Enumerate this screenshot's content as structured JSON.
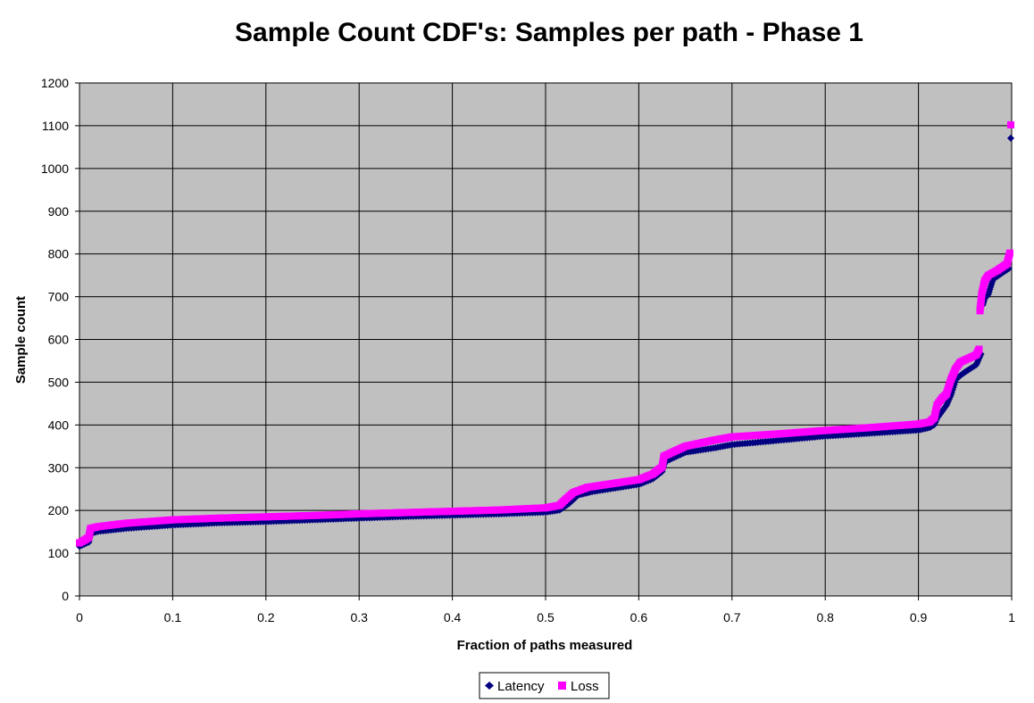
{
  "chart_data": {
    "type": "scatter",
    "title": "Sample Count CDF's:  Samples per path - Phase 1",
    "xlabel": "Fraction of paths measured",
    "ylabel": "Sample count",
    "xlim": [
      0,
      1
    ],
    "ylim": [
      0,
      1200
    ],
    "xticks": [
      "0",
      "0.1",
      "0.2",
      "0.3",
      "0.4",
      "0.5",
      "0.6",
      "0.7",
      "0.8",
      "0.9",
      "1"
    ],
    "yticks": [
      "0",
      "100",
      "200",
      "300",
      "400",
      "500",
      "600",
      "700",
      "800",
      "900",
      "1000",
      "1100",
      "1200"
    ],
    "grid": true,
    "legend_position": "bottom",
    "plot_background": "#c0c0c0",
    "series": [
      {
        "name": "Latency",
        "marker": "diamond",
        "color": "#000080",
        "points": [
          [
            0.0,
            120
          ],
          [
            0.005,
            125
          ],
          [
            0.01,
            130
          ],
          [
            0.012,
            150
          ],
          [
            0.02,
            155
          ],
          [
            0.05,
            162
          ],
          [
            0.1,
            170
          ],
          [
            0.15,
            175
          ],
          [
            0.2,
            178
          ],
          [
            0.25,
            182
          ],
          [
            0.3,
            186
          ],
          [
            0.35,
            190
          ],
          [
            0.4,
            193
          ],
          [
            0.45,
            196
          ],
          [
            0.5,
            200
          ],
          [
            0.515,
            205
          ],
          [
            0.525,
            220
          ],
          [
            0.535,
            240
          ],
          [
            0.55,
            248
          ],
          [
            0.6,
            265
          ],
          [
            0.615,
            278
          ],
          [
            0.625,
            295
          ],
          [
            0.628,
            318
          ],
          [
            0.64,
            330
          ],
          [
            0.65,
            340
          ],
          [
            0.68,
            350
          ],
          [
            0.7,
            358
          ],
          [
            0.75,
            368
          ],
          [
            0.8,
            378
          ],
          [
            0.85,
            385
          ],
          [
            0.9,
            392
          ],
          [
            0.912,
            398
          ],
          [
            0.917,
            405
          ],
          [
            0.92,
            420
          ],
          [
            0.925,
            435
          ],
          [
            0.93,
            450
          ],
          [
            0.935,
            475
          ],
          [
            0.94,
            510
          ],
          [
            0.945,
            520
          ],
          [
            0.95,
            528
          ],
          [
            0.955,
            535
          ],
          [
            0.962,
            545
          ],
          [
            0.965,
            560
          ],
          [
            0.967,
            570
          ],
          [
            0.969,
            685
          ],
          [
            0.971,
            700
          ],
          [
            0.975,
            710
          ],
          [
            0.98,
            745
          ],
          [
            0.99,
            760
          ],
          [
            0.997,
            770
          ],
          [
            0.999,
            1075
          ]
        ]
      },
      {
        "name": "Loss",
        "marker": "square",
        "color": "#ff00ff",
        "points": [
          [
            0.0,
            122
          ],
          [
            0.005,
            128
          ],
          [
            0.01,
            135
          ],
          [
            0.012,
            156
          ],
          [
            0.02,
            160
          ],
          [
            0.05,
            168
          ],
          [
            0.1,
            176
          ],
          [
            0.15,
            180
          ],
          [
            0.2,
            183
          ],
          [
            0.25,
            186
          ],
          [
            0.3,
            190
          ],
          [
            0.35,
            193
          ],
          [
            0.4,
            196
          ],
          [
            0.45,
            199
          ],
          [
            0.5,
            204
          ],
          [
            0.515,
            210
          ],
          [
            0.522,
            225
          ],
          [
            0.53,
            240
          ],
          [
            0.545,
            252
          ],
          [
            0.6,
            270
          ],
          [
            0.615,
            283
          ],
          [
            0.625,
            300
          ],
          [
            0.627,
            325
          ],
          [
            0.64,
            338
          ],
          [
            0.65,
            348
          ],
          [
            0.68,
            362
          ],
          [
            0.7,
            370
          ],
          [
            0.75,
            377
          ],
          [
            0.8,
            385
          ],
          [
            0.85,
            392
          ],
          [
            0.9,
            400
          ],
          [
            0.912,
            405
          ],
          [
            0.917,
            415
          ],
          [
            0.92,
            445
          ],
          [
            0.925,
            460
          ],
          [
            0.93,
            470
          ],
          [
            0.935,
            505
          ],
          [
            0.94,
            530
          ],
          [
            0.945,
            545
          ],
          [
            0.95,
            550
          ],
          [
            0.955,
            555
          ],
          [
            0.962,
            562
          ],
          [
            0.965,
            575
          ],
          [
            0.966,
            665
          ],
          [
            0.968,
            705
          ],
          [
            0.971,
            735
          ],
          [
            0.975,
            748
          ],
          [
            0.985,
            760
          ],
          [
            0.995,
            775
          ],
          [
            0.998,
            800
          ],
          [
            0.999,
            1100
          ]
        ]
      }
    ]
  },
  "legend": {
    "latency_label": "Latency",
    "loss_label": "Loss"
  }
}
